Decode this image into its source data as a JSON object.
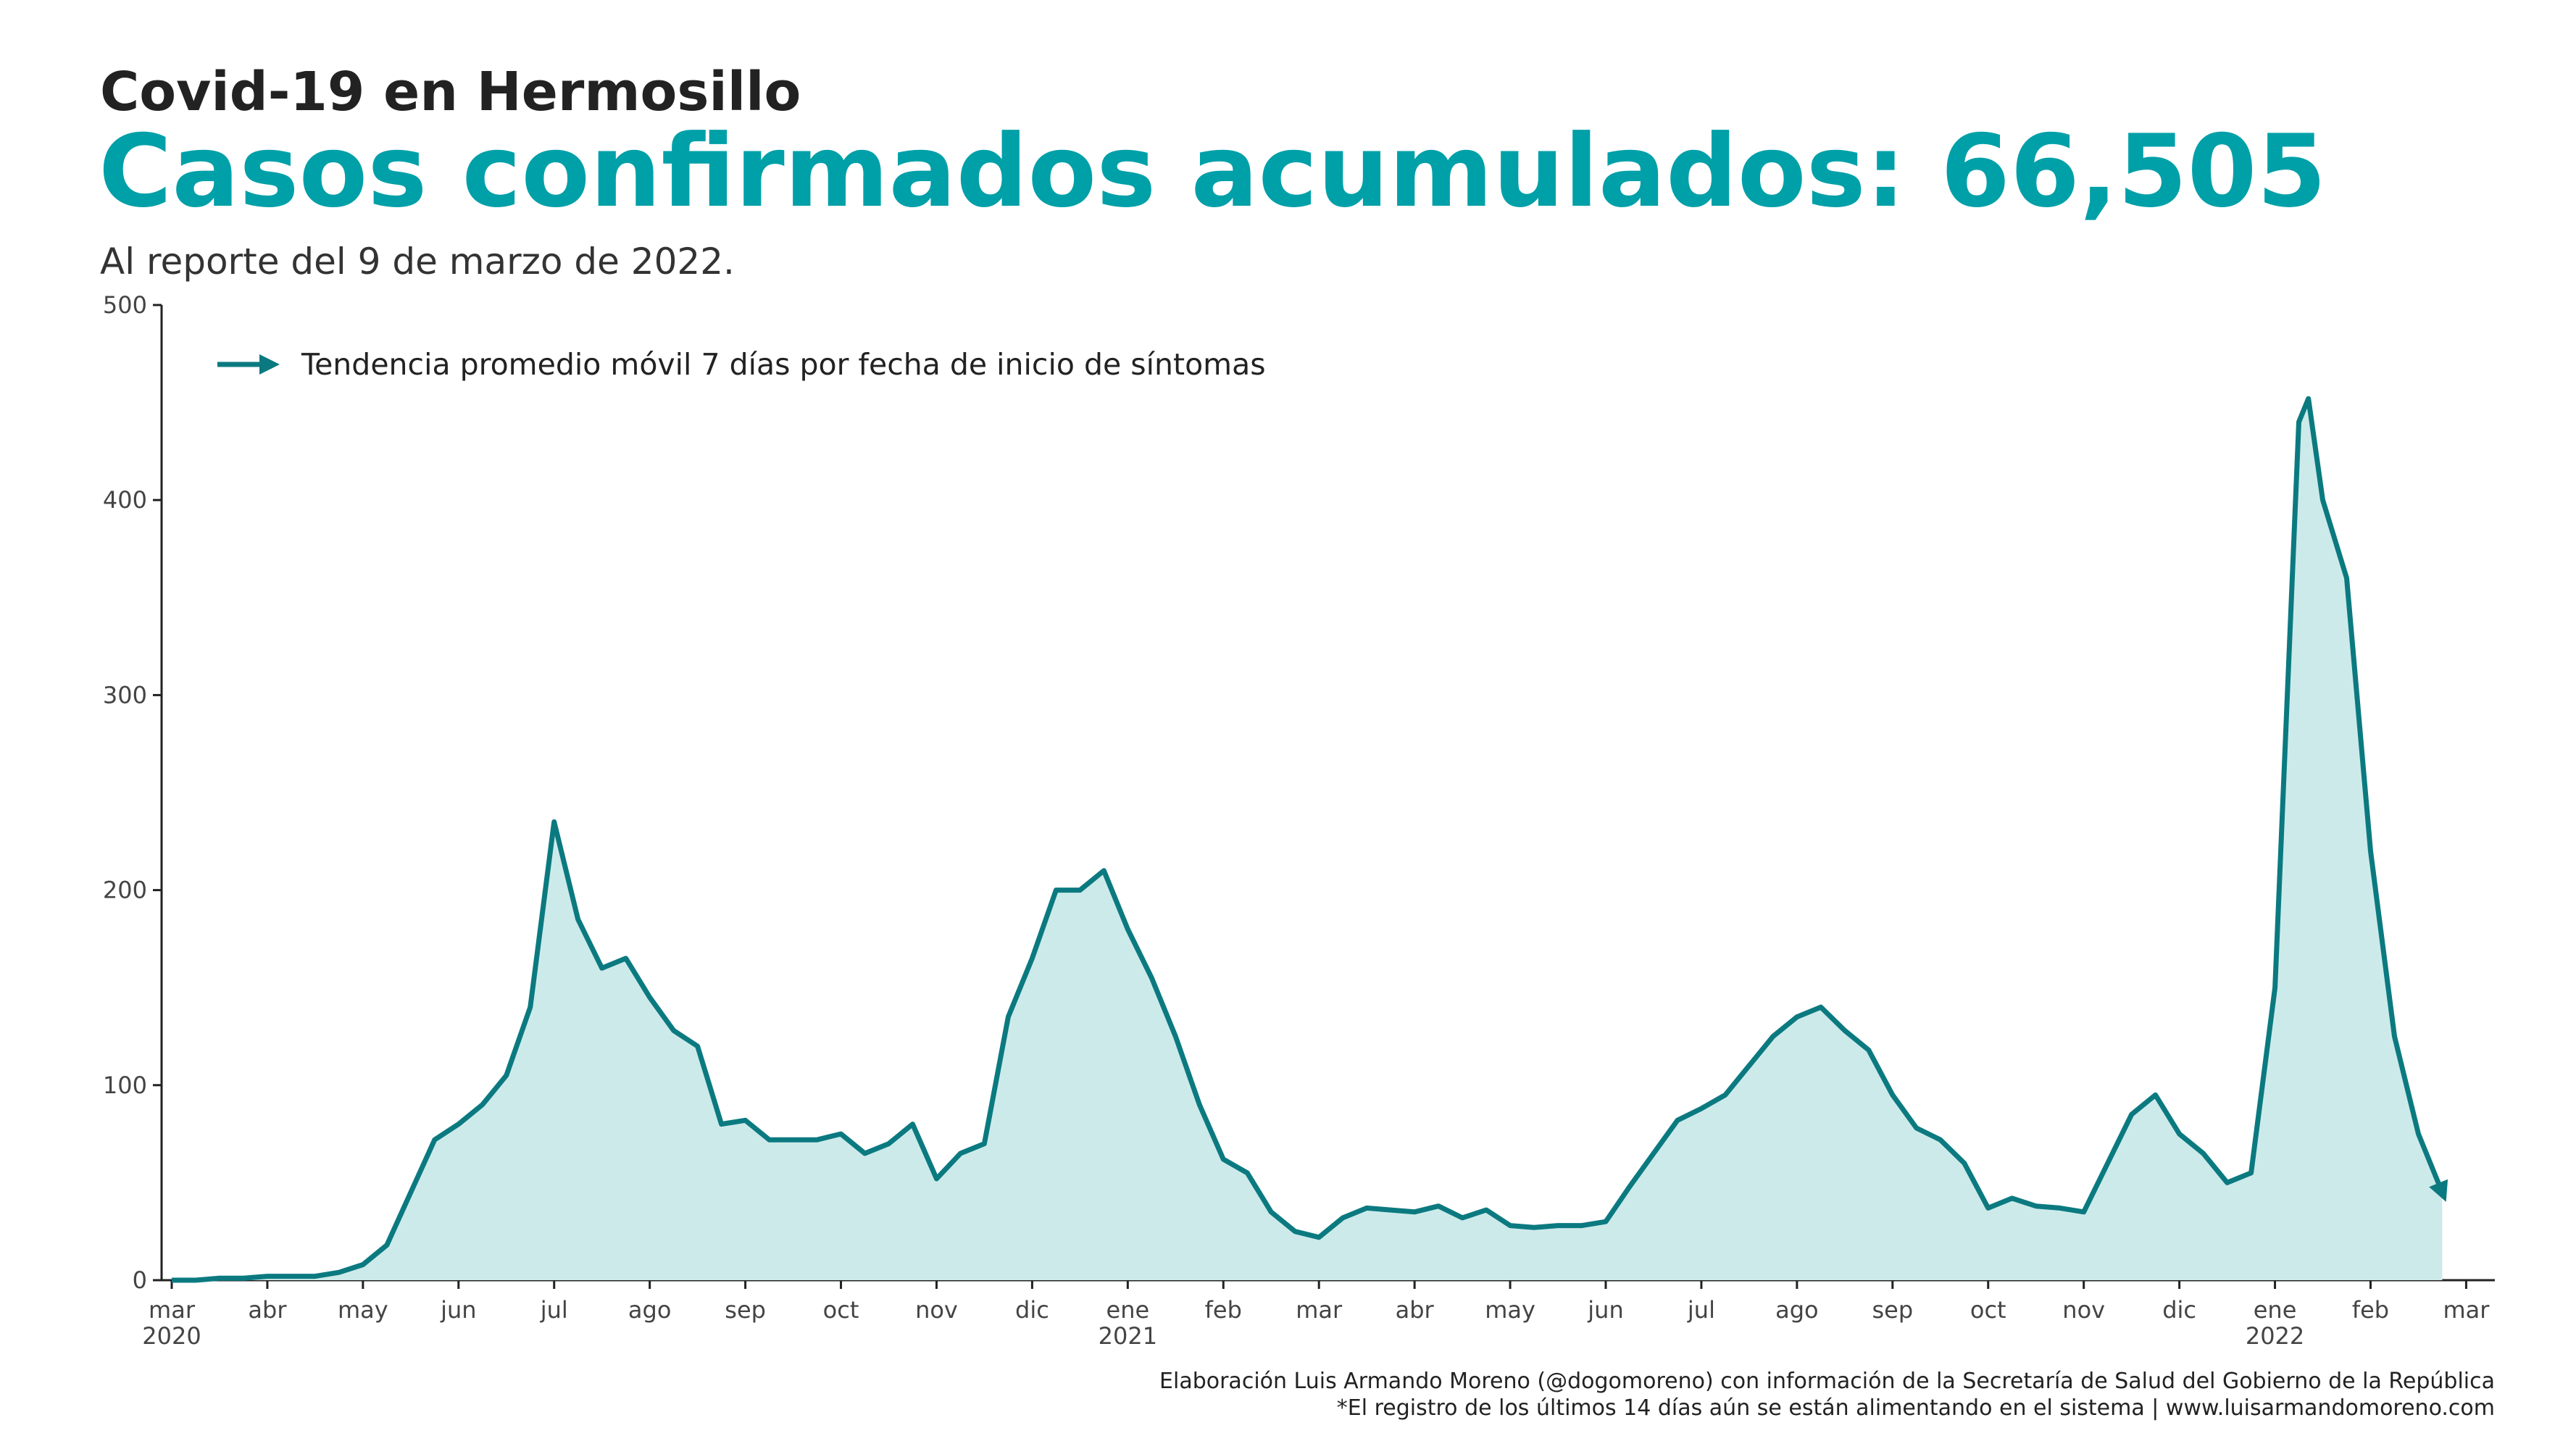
{
  "chart_data": {
    "type": "area",
    "heading": "Covid-19 en Hermosillo",
    "title": "Casos confirmados acumulados: 66,505",
    "subtitle": "Al reporte del 9 de marzo de 2022.",
    "caption": [
      "Elaboración Luis Armando Moreno (@dogomoreno) con información de la Secretaría de Salud del Gobierno de la República",
      "*El registro de los últimos 14 días aún se están alimentando en el sistema | www.luisarmandomoreno.com"
    ],
    "x": [
      0,
      0.25,
      0.5,
      0.75,
      1,
      1.25,
      1.5,
      1.75,
      2,
      2.25,
      2.5,
      2.75,
      3,
      3.25,
      3.5,
      3.75,
      4,
      4.25,
      4.5,
      4.75,
      5,
      5.25,
      5.5,
      5.75,
      6,
      6.25,
      6.5,
      6.75,
      7,
      7.25,
      7.5,
      7.75,
      8,
      8.25,
      8.5,
      8.75,
      9,
      9.25,
      9.5,
      9.75,
      10,
      10.25,
      10.5,
      10.75,
      11,
      11.25,
      11.5,
      11.75,
      12,
      12.25,
      12.5,
      12.75,
      13,
      13.25,
      13.5,
      13.75,
      14,
      14.25,
      14.5,
      14.75,
      15,
      15.25,
      15.5,
      15.75,
      16,
      16.25,
      16.5,
      16.75,
      17,
      17.25,
      17.5,
      17.75,
      18,
      18.25,
      18.5,
      18.75,
      19,
      19.25,
      19.5,
      19.75,
      20,
      20.25,
      20.5,
      20.75,
      21,
      21.25,
      21.5,
      21.75,
      22,
      22.25,
      22.35,
      22.5,
      22.75,
      23,
      23.25,
      23.5,
      23.75
    ],
    "series": [
      {
        "name": "Tendencia promedio móvil 7 días por fecha de inicio de síntomas",
        "color": "#0b7a80",
        "fill": "#cdeaea",
        "values": [
          0,
          0,
          1,
          1,
          2,
          2,
          2,
          4,
          8,
          18,
          45,
          72,
          80,
          90,
          105,
          140,
          235,
          185,
          160,
          165,
          145,
          128,
          120,
          80,
          82,
          72,
          72,
          72,
          75,
          65,
          70,
          80,
          52,
          65,
          70,
          135,
          165,
          200,
          200,
          210,
          180,
          155,
          125,
          90,
          62,
          55,
          35,
          25,
          22,
          32,
          37,
          36,
          35,
          38,
          32,
          36,
          28,
          27,
          28,
          28,
          30,
          48,
          65,
          82,
          88,
          95,
          110,
          125,
          135,
          140,
          128,
          118,
          95,
          78,
          72,
          60,
          37,
          42,
          38,
          37,
          35,
          60,
          85,
          95,
          75,
          65,
          50,
          55,
          150,
          440,
          452,
          400,
          360,
          220,
          125,
          75,
          45
        ]
      }
    ],
    "xlim": [
      0,
      24.3
    ],
    "xticks": [
      {
        "value": 0,
        "label": "mar"
      },
      {
        "value": 1,
        "label": "abr"
      },
      {
        "value": 2,
        "label": "may"
      },
      {
        "value": 3,
        "label": "jun"
      },
      {
        "value": 4,
        "label": "jul"
      },
      {
        "value": 5,
        "label": "ago"
      },
      {
        "value": 6,
        "label": "sep"
      },
      {
        "value": 7,
        "label": "oct"
      },
      {
        "value": 8,
        "label": "nov"
      },
      {
        "value": 9,
        "label": "dic"
      },
      {
        "value": 10,
        "label": "ene"
      },
      {
        "value": 11,
        "label": "feb"
      },
      {
        "value": 12,
        "label": "mar"
      },
      {
        "value": 13,
        "label": "abr"
      },
      {
        "value": 14,
        "label": "may"
      },
      {
        "value": 15,
        "label": "jun"
      },
      {
        "value": 16,
        "label": "jul"
      },
      {
        "value": 17,
        "label": "ago"
      },
      {
        "value": 18,
        "label": "sep"
      },
      {
        "value": 19,
        "label": "oct"
      },
      {
        "value": 20,
        "label": "nov"
      },
      {
        "value": 21,
        "label": "dic"
      },
      {
        "value": 22,
        "label": "ene"
      },
      {
        "value": 23,
        "label": "feb"
      },
      {
        "value": 24,
        "label": "mar"
      }
    ],
    "year_labels": [
      {
        "value": 0,
        "label": "2020"
      },
      {
        "value": 10,
        "label": "2021"
      },
      {
        "value": 22,
        "label": "2022"
      }
    ],
    "ylim": [
      0,
      500
    ],
    "yticks": [
      0,
      100,
      200,
      300,
      400,
      500
    ],
    "grid": false
  }
}
